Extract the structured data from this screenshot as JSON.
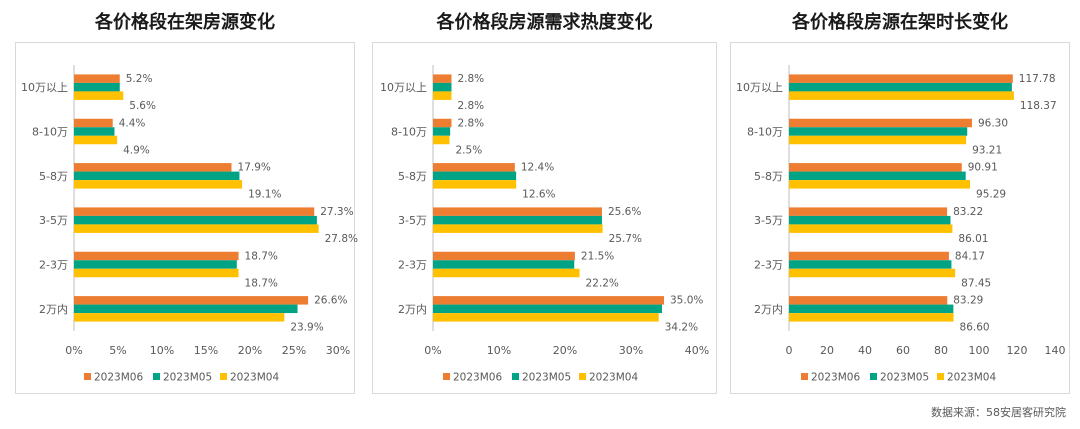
{
  "colors": {
    "M06": "#ED7D31",
    "M05": "#00A383",
    "M04": "#FFC000"
  },
  "source": "数据来源：58安居客研究院",
  "chart_data": [
    {
      "type": "bar",
      "title": "各价格段在架房源变化",
      "categories": [
        "10万以上",
        "8-10万",
        "5-8万",
        "3-5万",
        "2-3万",
        "2万内"
      ],
      "series": [
        {
          "name": "2023M06",
          "values": [
            5.2,
            4.4,
            17.9,
            27.3,
            18.7,
            26.6
          ]
        },
        {
          "name": "2023M05",
          "values": [
            5.2,
            4.6,
            18.8,
            27.6,
            18.5,
            25.4
          ]
        },
        {
          "name": "2023M04",
          "values": [
            5.6,
            4.9,
            19.1,
            27.8,
            18.7,
            23.9
          ]
        }
      ],
      "labels": {
        "M06": [
          "5.2%",
          "4.4%",
          "17.9%",
          "27.3%",
          "18.7%",
          "26.6%"
        ],
        "M04": [
          "5.6%",
          "4.9%",
          "19.1%",
          "27.8%",
          "18.7%",
          "23.9%"
        ]
      },
      "ticks": [
        "0%",
        "5%",
        "10%",
        "15%",
        "20%",
        "25%",
        "30%"
      ],
      "xlim": [
        0,
        30
      ],
      "orientation": "horizontal",
      "legend": "bottom"
    },
    {
      "type": "bar",
      "title": "各价格段房源需求热度变化",
      "categories": [
        "10万以上",
        "8-10万",
        "5-8万",
        "3-5万",
        "2-3万",
        "2万内"
      ],
      "series": [
        {
          "name": "2023M06",
          "values": [
            2.8,
            2.8,
            12.4,
            25.6,
            21.5,
            35.0
          ]
        },
        {
          "name": "2023M05",
          "values": [
            2.8,
            2.6,
            12.6,
            25.6,
            21.4,
            34.7
          ]
        },
        {
          "name": "2023M04",
          "values": [
            2.8,
            2.5,
            12.6,
            25.7,
            22.2,
            34.2
          ]
        }
      ],
      "labels": {
        "M06": [
          "2.8%",
          "2.8%",
          "12.4%",
          "25.6%",
          "21.5%",
          "35.0%"
        ],
        "M04": [
          "2.8%",
          "2.5%",
          "12.6%",
          "25.7%",
          "22.2%",
          "34.2%"
        ]
      },
      "ticks": [
        "0%",
        "10%",
        "20%",
        "30%",
        "40%"
      ],
      "xlim": [
        0,
        40
      ],
      "orientation": "horizontal",
      "legend": "bottom"
    },
    {
      "type": "bar",
      "title": "各价格段房源在架时长变化",
      "categories": [
        "10万以上",
        "8-10万",
        "5-8万",
        "3-5万",
        "2-3万",
        "2万内"
      ],
      "series": [
        {
          "name": "2023M06",
          "values": [
            117.78,
            96.3,
            90.91,
            83.22,
            84.17,
            83.29
          ]
        },
        {
          "name": "2023M05",
          "values": [
            117.3,
            93.8,
            93.0,
            85.0,
            85.5,
            86.5
          ]
        },
        {
          "name": "2023M04",
          "values": [
            118.37,
            93.21,
            95.29,
            86.01,
            87.45,
            86.6
          ]
        }
      ],
      "labels": {
        "M06": [
          "117.78",
          "96.30",
          "90.91",
          "83.22",
          "84.17",
          "83.29"
        ],
        "M04": [
          "118.37",
          "93.21",
          "95.29",
          "86.01",
          "87.45",
          "86.60"
        ]
      },
      "ticks": [
        "0",
        "20",
        "40",
        "60",
        "80",
        "100",
        "120",
        "140"
      ],
      "xlim": [
        0,
        140
      ],
      "orientation": "horizontal",
      "legend": "bottom"
    }
  ]
}
